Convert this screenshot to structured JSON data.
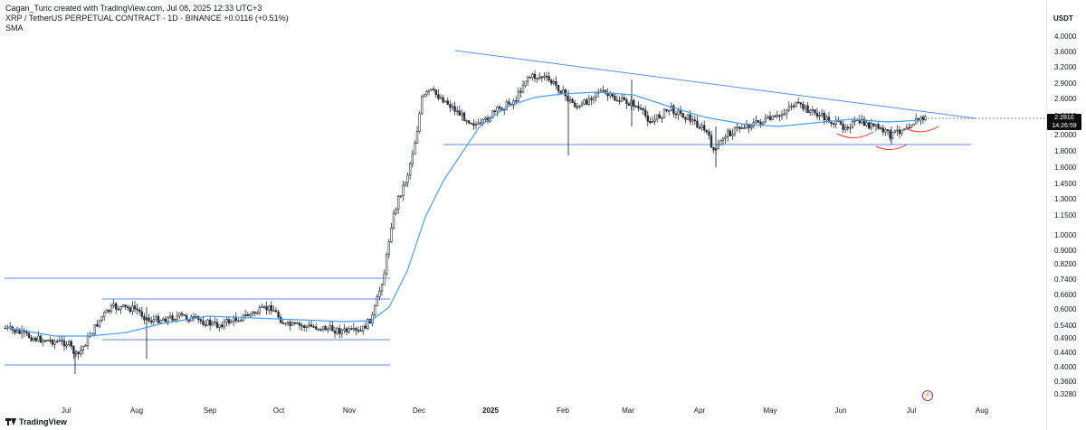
{
  "header": {
    "author_line": "Cagan_Turic created with TradingView.com, Jul 08, 2025 12:33 UTC+3",
    "symbol_line": "XRP / TetherUS PERPETUAL CONTRACT · 1D · BINANCE  +0.0116 (+0.51%)",
    "indicator": "SMA"
  },
  "price_axis": {
    "title": "USDT",
    "ticks": [
      "4.0000",
      "3.6000",
      "3.2000",
      "2.9000",
      "2.6000",
      "2.3000",
      "2.0000",
      "1.8000",
      "1.6000",
      "1.4500",
      "1.3000",
      "1.1500",
      "1.0000",
      "0.9000",
      "0.8200",
      "0.7400",
      "0.6600",
      "0.6000",
      "0.5400",
      "0.4900",
      "0.4400",
      "0.4000",
      "0.3600",
      "0.3280"
    ],
    "current_price": "2.2810",
    "countdown": "14:26:59"
  },
  "time_axis": {
    "ticks": [
      "Jul",
      "Aug",
      "Sep",
      "Oct",
      "Nov",
      "Dec",
      "2025",
      "Feb",
      "Mar",
      "Apr",
      "May",
      "Jun",
      "Jul",
      "Aug"
    ]
  },
  "brand": {
    "name": "TradingView"
  },
  "event_icon": "lightning-icon",
  "colors": {
    "trendline": "#5b8def",
    "sma": "#4a9ff5",
    "candle": "#2a2e39",
    "arc": "#e53935",
    "event": "#9c27b0"
  },
  "chart_data": {
    "type": "candlestick",
    "symbol": "XRP / TetherUS PERPETUAL CONTRACT",
    "timeframe": "1D",
    "exchange": "BINANCE",
    "last_price": 2.281,
    "change": "+0.0116 (+0.51%)",
    "scale": "log",
    "y_range": [
      0.328,
      4.0
    ],
    "indicators": [
      "SMA"
    ]
  }
}
